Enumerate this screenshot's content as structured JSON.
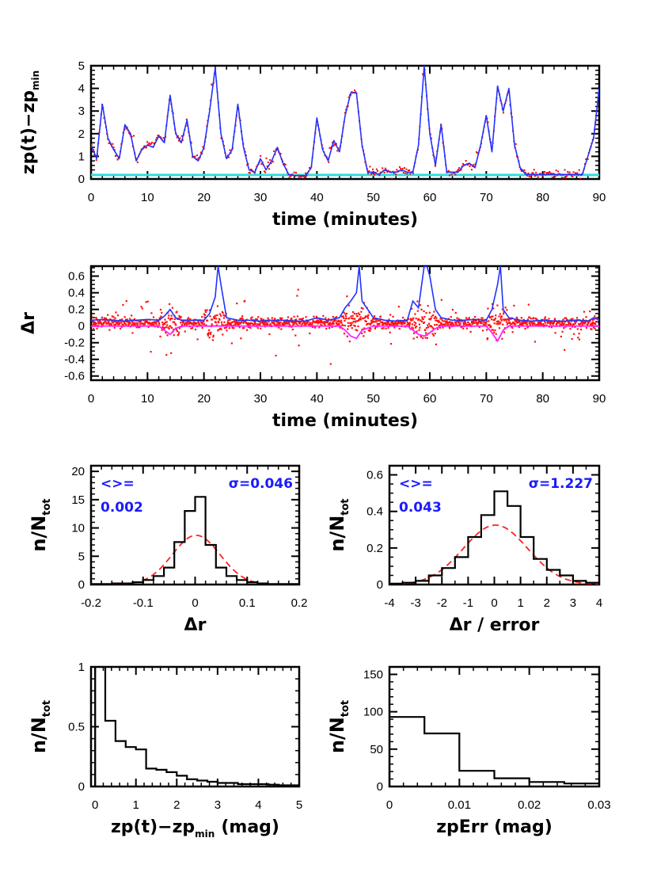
{
  "chart_data": [
    {
      "id": "zp_time",
      "type": "line",
      "ylabel_main": "zp(t)−zp",
      "ylabel_sub": "min",
      "xlabel": "time (minutes)",
      "xlim": [
        0,
        90
      ],
      "ylim": [
        0,
        5
      ],
      "xticks": [
        0,
        10,
        20,
        30,
        40,
        50,
        60,
        70,
        80,
        90
      ],
      "yticks": [
        0,
        1,
        2,
        3,
        4,
        5
      ],
      "series": [
        {
          "color": "#2233ff",
          "style": "line",
          "x": [
            0,
            1,
            2,
            3,
            4,
            5,
            6,
            7,
            8,
            9,
            10,
            11,
            12,
            13,
            14,
            15,
            16,
            17,
            18,
            19,
            20,
            21,
            22,
            23,
            24,
            25,
            26,
            27,
            28,
            29,
            30,
            31,
            32,
            33,
            34,
            35,
            36,
            37,
            38,
            39,
            40,
            41,
            42,
            43,
            44,
            45,
            46,
            47,
            48,
            49,
            50,
            51,
            52,
            53,
            54,
            55,
            56,
            57,
            58,
            59,
            60,
            61,
            62,
            63,
            64,
            65,
            66,
            67,
            68,
            69,
            70,
            71,
            72,
            73,
            74,
            75,
            76,
            77,
            78,
            79,
            80,
            81,
            82,
            83,
            84,
            85,
            86,
            87,
            88,
            89,
            90
          ],
          "y": [
            1.5,
            0.9,
            3.3,
            1.8,
            1.3,
            0.9,
            2.4,
            2.0,
            0.8,
            1.3,
            1.5,
            1.4,
            1.9,
            1.6,
            3.7,
            2.0,
            1.6,
            2.6,
            1.0,
            0.8,
            1.4,
            3.0,
            4.9,
            2.0,
            0.9,
            1.3,
            3.3,
            1.4,
            0.4,
            0.3,
            0.9,
            0.4,
            0.8,
            1.4,
            0.7,
            0.2,
            0.15,
            0.15,
            0.15,
            0.5,
            2.7,
            1.3,
            0.8,
            1.7,
            1.2,
            2.8,
            3.8,
            3.8,
            1.5,
            0.3,
            0.3,
            0.2,
            0.4,
            0.3,
            0.3,
            0.4,
            0.3,
            0.3,
            1.5,
            5.0,
            2.0,
            0.6,
            2.4,
            0.3,
            0.3,
            0.3,
            0.6,
            0.7,
            0.5,
            1.5,
            2.8,
            1.2,
            4.1,
            3.0,
            4.0,
            1.5,
            0.5,
            0.2,
            0.2,
            0.2,
            0.2,
            0.2,
            0.2,
            0.2,
            0.2,
            0.2,
            0.2,
            0.2,
            1.0,
            1.8,
            4.0
          ]
        },
        {
          "color": "#ff0000",
          "style": "dots"
        },
        {
          "color": "#33dddd",
          "style": "line",
          "x": [
            0,
            90
          ],
          "y": [
            0.18,
            0.18
          ]
        }
      ]
    },
    {
      "id": "dr_time",
      "type": "scatter",
      "ylabel_main": "Δr",
      "xlabel": "time (minutes)",
      "xlim": [
        0,
        90
      ],
      "ylim": [
        -0.65,
        0.72
      ],
      "xticks": [
        0,
        10,
        20,
        30,
        40,
        50,
        60,
        70,
        80,
        90
      ],
      "yticks": [
        -0.6,
        -0.4,
        -0.2,
        0,
        0.2,
        0.4,
        0.6
      ],
      "series": [
        {
          "color": "#ff1111",
          "style": "dots"
        },
        {
          "color": "#2233ff",
          "style": "line",
          "x": [
            0,
            2,
            4,
            6,
            8,
            10,
            12,
            13,
            14,
            15,
            16,
            18,
            20,
            21,
            22,
            22.5,
            23,
            24,
            26,
            28,
            30,
            32,
            34,
            36,
            38,
            40,
            42,
            44,
            45,
            46,
            47,
            47.5,
            48,
            50,
            52,
            54,
            56,
            57,
            58,
            59,
            59.5,
            60,
            61,
            62,
            64,
            66,
            68,
            70,
            71,
            72,
            72.5,
            73,
            74,
            76,
            78,
            80,
            82,
            84,
            86,
            88,
            89,
            90
          ],
          "y": [
            0.07,
            0.08,
            0.07,
            0.06,
            0.07,
            0.08,
            0.07,
            0.12,
            0.2,
            0.1,
            0.07,
            0.07,
            0.07,
            0.15,
            0.35,
            0.72,
            0.5,
            0.1,
            0.07,
            0.07,
            0.06,
            0.07,
            0.07,
            0.06,
            0.06,
            0.1,
            0.07,
            0.1,
            0.22,
            0.3,
            0.4,
            0.72,
            0.3,
            0.1,
            0.07,
            0.06,
            0.07,
            0.3,
            0.22,
            0.72,
            0.72,
            0.6,
            0.2,
            0.1,
            0.07,
            0.07,
            0.08,
            0.07,
            0.2,
            0.5,
            0.72,
            0.2,
            0.1,
            0.07,
            0.06,
            0.07,
            0.06,
            0.06,
            0.07,
            0.06,
            0.1,
            0.07
          ]
        },
        {
          "color": "#ff22ff",
          "style": "line",
          "x": [
            0,
            12,
            13,
            14,
            15,
            16,
            44,
            45,
            46,
            47,
            48,
            50,
            56,
            57,
            58,
            59,
            60,
            61,
            62,
            70,
            71,
            72,
            73,
            74,
            90
          ],
          "y": [
            0.0,
            0.0,
            -0.05,
            -0.1,
            -0.03,
            0.0,
            0.0,
            -0.05,
            -0.12,
            -0.15,
            -0.05,
            0.0,
            0.0,
            -0.05,
            -0.1,
            -0.12,
            -0.08,
            -0.03,
            0.0,
            0.0,
            -0.08,
            -0.18,
            -0.05,
            0.0,
            0.0
          ]
        }
      ]
    },
    {
      "id": "hist_dr",
      "type": "bar",
      "ylabel_main": "n/N",
      "ylabel_sub": "tot",
      "xlabel": "Δr",
      "xlim": [
        -0.2,
        0.2
      ],
      "ylim": [
        0,
        21
      ],
      "xticks": [
        -0.2,
        -0.1,
        0,
        0.1,
        0.2
      ],
      "yticks": [
        0,
        5,
        10,
        15,
        20
      ],
      "annot_mean_label": "<>=",
      "annot_mean": "0.002",
      "annot_sigma": "σ=0.046",
      "bin_edges": [
        -0.2,
        -0.18,
        -0.16,
        -0.14,
        -0.12,
        -0.1,
        -0.08,
        -0.06,
        -0.04,
        -0.02,
        0,
        0.02,
        0.04,
        0.06,
        0.08,
        0.1,
        0.12,
        0.14,
        0.16,
        0.18,
        0.2
      ],
      "counts": [
        0.1,
        0.1,
        0.2,
        0.2,
        0.4,
        0.8,
        1.5,
        3.0,
        7.5,
        13.0,
        15.5,
        7.0,
        3.0,
        1.5,
        0.8,
        0.4,
        0.2,
        0.1,
        0.1,
        0.1
      ],
      "gaussian": {
        "mean": 0.002,
        "sigma": 0.046,
        "peak": 8.7
      }
    },
    {
      "id": "hist_dr_err",
      "type": "bar",
      "ylabel_main": "n/N",
      "ylabel_sub": "tot",
      "xlabel": "Δr / error",
      "xlim": [
        -4,
        4
      ],
      "ylim": [
        0,
        0.65
      ],
      "xticks": [
        -4,
        -3,
        -2,
        -1,
        0,
        1,
        2,
        3,
        4
      ],
      "yticks": [
        0,
        0.2,
        0.4,
        0.6
      ],
      "annot_mean_label": "<>=",
      "annot_mean": "0.043",
      "annot_sigma": "σ=1.227",
      "bin_edges": [
        -4,
        -3.5,
        -3,
        -2.5,
        -2,
        -1.5,
        -1,
        -0.5,
        0,
        0.5,
        1,
        1.5,
        2,
        2.5,
        3,
        3.5,
        4
      ],
      "counts": [
        0.005,
        0.01,
        0.02,
        0.05,
        0.09,
        0.15,
        0.26,
        0.38,
        0.51,
        0.43,
        0.26,
        0.14,
        0.08,
        0.05,
        0.02,
        0.01
      ],
      "gaussian": {
        "mean": 0.043,
        "sigma": 1.227,
        "peak": 0.325
      }
    },
    {
      "id": "hist_zp",
      "type": "bar",
      "ylabel_main": "n/N",
      "ylabel_sub": "tot",
      "xlabel_main": "zp(t)−zp",
      "xlabel_sub": "min",
      "xlabel_tail": "(mag)",
      "xlim": [
        -0.1,
        5
      ],
      "ylim": [
        0,
        1.0
      ],
      "xticks": [
        0,
        1,
        2,
        3,
        4,
        5
      ],
      "yticks": [
        0,
        0.5,
        1
      ],
      "bin_edges": [
        0,
        0.25,
        0.5,
        0.75,
        1,
        1.25,
        1.5,
        1.75,
        2,
        2.25,
        2.5,
        2.75,
        3,
        3.25,
        3.5,
        3.75,
        4,
        4.25,
        4.5,
        4.75,
        5
      ],
      "counts": [
        1.05,
        0.55,
        0.38,
        0.33,
        0.31,
        0.15,
        0.14,
        0.12,
        0.09,
        0.06,
        0.05,
        0.04,
        0.03,
        0.03,
        0.02,
        0.02,
        0.02,
        0.015,
        0.01,
        0.01
      ]
    },
    {
      "id": "hist_zperr",
      "type": "bar",
      "ylabel_main": "n/N",
      "ylabel_sub": "tot",
      "xlabel": "zpErr (mag)",
      "xlim": [
        0,
        0.03
      ],
      "ylim": [
        0,
        160
      ],
      "xticks": [
        0,
        0.01,
        0.02,
        0.03
      ],
      "xtick_labels": [
        "0",
        "0.01",
        "0.02",
        "0.03"
      ],
      "yticks": [
        0,
        50,
        100,
        150
      ],
      "bin_edges": [
        0,
        0.005,
        0.01,
        0.015,
        0.02,
        0.025,
        0.03
      ],
      "counts": [
        93,
        71,
        21,
        11,
        6,
        4
      ]
    }
  ]
}
